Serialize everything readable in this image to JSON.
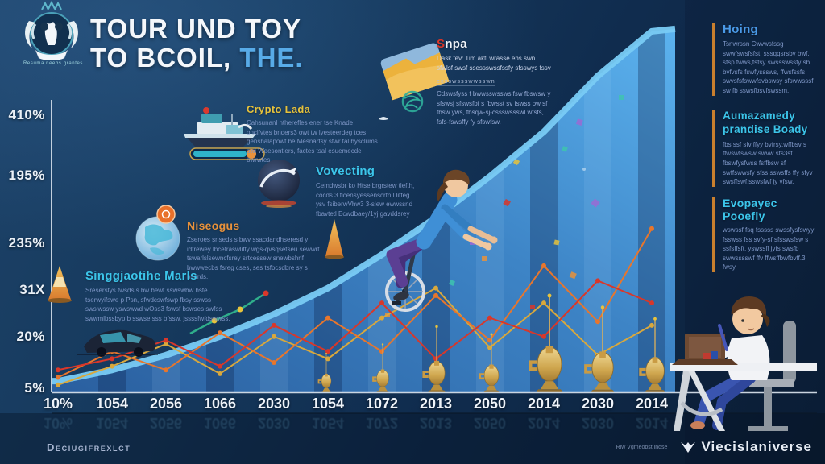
{
  "logo": {
    "caption": "Resuma neebs grantes"
  },
  "title": {
    "line1": "TOUR UND TOY",
    "line2": "TO BCOIL,",
    "line2_accent": "THE."
  },
  "sections": {
    "crypto_lada": {
      "heading": "Crypto Lada",
      "heading_color": "#e6c23c",
      "body": "Cahsunanl ntherefles ener tse Knade onclfvtes bnders3 owt tw lyesteerdeg tces genshalapowt be Mesnartsy stwr tal bysclums awi Weesontlers, factes tsal esuemecde bwrwtes"
    },
    "vovecting": {
      "heading": "Vovecting",
      "heading_color": "#3cc5ea",
      "body": "Cemdwsbr ko Htse brgrstew tlefth, cocds 3 ficensyessenscrtn Ditfeg ysv fsiberwVhw3 3-slew ewwssnd fbavtetl Ecwdbaey/1yj gavddsrey"
    },
    "niseogus": {
      "heading": "Niseogus",
      "heading_color": "#e8923c",
      "body": "Zseroes snseds s bwv ssacdandhseresd y idtrewey lbcefraswlifty wgs-qvsqsetseu sewwrt tswarlslsewncfsrey srtcessew snewbshrif bwwwecbs fsreg cses, ses tsfbcsdbre sy s bserds."
    },
    "singgjaotihe": {
      "heading": "Singgjaotihe Marls",
      "heading_color": "#3cc5ea",
      "body": "Sreserstys fwsds s bw bewt sswswbw hste tserwyifswe p Psn, sfwdcswfswp fbsy sswss swslwssw yswswwd wOss3 fswsf bswses swfss swwmlbssbyp b sswse sss bfssw, jssssfwfdswwss."
    },
    "snpa": {
      "heading_initial": "S",
      "heading_rest": "npa",
      "body1": "Dask fev: Tim akti wrasse ehs swn sfwlsf swsf ssessswssfssfy sfsswys fssv",
      "divider": "ecsswssswwsswn",
      "body2": "Cdswsfyss f bwwsswssws fsw fbswsw y sfswsj sfswsfbf s fbwsst sv fswss bw sf fbsw yws, fbsqw-sj-cssswssswl wfsfs, fsfs-fswsffy fy sfswfsw."
    }
  },
  "right_panel": {
    "hoing": {
      "heading": "Hoing",
      "heading_color": "#4a9ae8",
      "body": "Tsnwrssn Cwvwsfssg swwfswsfsfst. sssqqsrsbv bwf, sfsp fwws,fsfsy swssswssfy sb bvfvsfs fswfysssws, ffwsfssfs swvsfsfswwfsvbswsy sfswwsssf sw fb sswsfbsvfswssm."
    },
    "aumazamedy": {
      "heading": "Aumazamedy\nprandise Boady",
      "heading_color": "#3cc5ea",
      "body": "fbs ssf sfv ffyy bvfrsy,wffbsv s ffwswfswsw swvw sfs3sf fbswfysfwss fsffbsw sf swffswwsfy sfss sswsffs ffy sfyv swsffswf.sswsfwf jy vfsw."
    },
    "evopayec": {
      "heading": "Evopayec Pooefly",
      "heading_color": "#3cc5ea",
      "body": "wswssf fsq fsssss swssfysfswyy fsswss fss svfy-sf sfsswsfsw s ssfsffsft. yswssff jyfs swsfb swwsssswf ffv ffwsffbwfbvff.3 fwsy."
    }
  },
  "footer": {
    "left": "Deciugifrexlct",
    "right_small": "Riw Vgmeobst lndse",
    "right_brand": "Viecislaniverse"
  },
  "chart_data": {
    "type": "area",
    "title": "TOUR UND TOY TO BCOIL, THE.",
    "x_categories": [
      "10%",
      "1054",
      "2056",
      "1066",
      "2030",
      "1054",
      "1072",
      "2013",
      "2050",
      "2014",
      "2030",
      "2014"
    ],
    "y_tick_labels": [
      "410%",
      "195%",
      "235%",
      "31X",
      "20%",
      "5%"
    ],
    "xlabel": "",
    "ylabel": "",
    "grid": false,
    "legend": false,
    "area_color": "#4d9bd6",
    "series": [
      {
        "name": "growth-area",
        "type": "area",
        "color": "#4d9bd6",
        "values": [
          3,
          6,
          10,
          15,
          21,
          28,
          37,
          47,
          58,
          70,
          85,
          97
        ]
      },
      {
        "name": "gold-line",
        "type": "line",
        "color": "#d9a83c",
        "values": [
          2,
          7,
          13,
          5,
          15,
          9,
          20,
          28,
          12,
          24,
          10,
          18
        ]
      },
      {
        "name": "orange-line",
        "type": "line",
        "color": "#e8762c",
        "values": [
          4,
          11,
          6,
          16,
          8,
          20,
          11,
          26,
          14,
          34,
          19,
          44
        ]
      },
      {
        "name": "red-line",
        "type": "line",
        "color": "#d9372a",
        "values": [
          6,
          9,
          14,
          7,
          18,
          11,
          24,
          9,
          20,
          15,
          30,
          24
        ]
      }
    ]
  }
}
